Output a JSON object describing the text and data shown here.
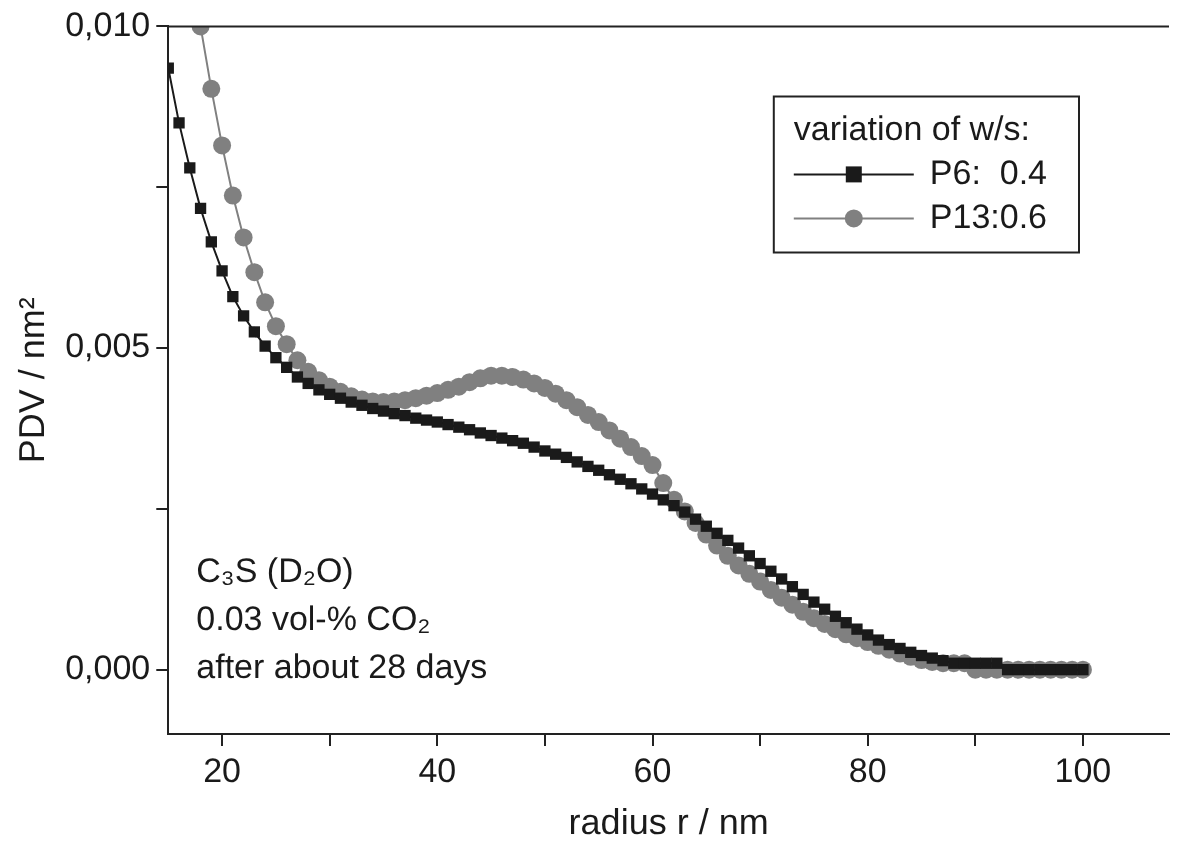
{
  "chart_data": {
    "type": "line",
    "xlabel": "radius r / nm",
    "ylabel": "PDV / nm²",
    "legend_title": "variation of w/s:",
    "legend": "top right",
    "grid": false,
    "line_style": "solid",
    "xlim": [
      15,
      108
    ],
    "xticks": [
      20,
      {
        "value": 30,
        "label": null
      },
      40,
      {
        "value": 50,
        "label": null
      },
      60,
      {
        "value": 70,
        "label": null
      },
      80,
      {
        "value": 90,
        "label": null
      },
      100
    ],
    "ylim": [
      -0.001,
      0.01
    ],
    "yticks": [
      {
        "value": 0,
        "label": "0,000"
      },
      {
        "value": 0.0025,
        "label": null
      },
      {
        "value": 0.005,
        "label": "0,005"
      },
      {
        "value": 0.0075,
        "label": null
      },
      {
        "value": 0.01,
        "label": "0,010"
      }
    ],
    "annotations": [
      "C₃S (D₂O)",
      "0.03 vol-% CO₂",
      "after about 28 days"
    ],
    "series": [
      {
        "name": "P6:  0.4",
        "color": "#1a1a1a",
        "marker": "square",
        "x": [
          15,
          16,
          17,
          18,
          19,
          20,
          21,
          22,
          23,
          24,
          25,
          26,
          27,
          28,
          29,
          30,
          31,
          32,
          33,
          34,
          35,
          36,
          37,
          38,
          39,
          40,
          41,
          42,
          43,
          44,
          45,
          46,
          47,
          48,
          49,
          50,
          51,
          52,
          53,
          54,
          55,
          56,
          57,
          58,
          59,
          60,
          61,
          62,
          63,
          64,
          65,
          66,
          67,
          68,
          69,
          70,
          71,
          72,
          73,
          74,
          75,
          76,
          77,
          78,
          79,
          80,
          81,
          82,
          83,
          84,
          85,
          86,
          87,
          88,
          89,
          90,
          91,
          92,
          93,
          94,
          95,
          96,
          97,
          98,
          99,
          100
        ],
        "values": [
          0.00935,
          0.0085,
          0.0078,
          0.00717,
          0.00665,
          0.0062,
          0.0058,
          0.0055,
          0.00525,
          0.00503,
          0.00485,
          0.0047,
          0.00455,
          0.00445,
          0.00435,
          0.00428,
          0.00422,
          0.00416,
          0.00411,
          0.00406,
          0.00402,
          0.00398,
          0.00395,
          0.00391,
          0.00388,
          0.00385,
          0.00381,
          0.00377,
          0.00373,
          0.00368,
          0.00364,
          0.0036,
          0.00356,
          0.00352,
          0.00346,
          0.0034,
          0.00335,
          0.0033,
          0.00323,
          0.00316,
          0.0031,
          0.00303,
          0.00296,
          0.00289,
          0.00281,
          0.00273,
          0.00264,
          0.00255,
          0.00245,
          0.00234,
          0.00223,
          0.00212,
          0.00201,
          0.00189,
          0.00177,
          0.00165,
          0.00153,
          0.00141,
          0.00129,
          0.00117,
          0.00105,
          0.00094,
          0.00083,
          0.00073,
          0.00063,
          0.00054,
          0.00046,
          0.00039,
          0.00033,
          0.00027,
          0.00022,
          0.00018,
          0.00014,
          0.0001,
          0.0001,
          0.0001,
          0.0001,
          0.0001,
          0,
          0,
          0,
          0,
          0,
          0,
          0,
          0
        ]
      },
      {
        "name": "P13:0.6",
        "color": "#808080",
        "marker": "circle",
        "x": [
          18,
          19,
          20,
          21,
          22,
          23,
          24,
          25,
          26,
          27,
          28,
          29,
          30,
          31,
          32,
          33,
          34,
          35,
          36,
          37,
          38,
          39,
          40,
          41,
          42,
          43,
          44,
          45,
          46,
          47,
          48,
          49,
          50,
          51,
          52,
          53,
          54,
          55,
          56,
          57,
          58,
          59,
          60,
          61,
          62,
          63,
          64,
          65,
          66,
          67,
          68,
          69,
          70,
          71,
          72,
          73,
          74,
          75,
          76,
          77,
          78,
          79,
          80,
          81,
          82,
          83,
          84,
          85,
          86,
          87,
          88,
          89,
          90,
          91,
          92,
          93,
          94,
          95,
          96,
          97,
          98,
          99,
          100
        ],
        "values": [
          0.01,
          0.00903,
          0.00815,
          0.00737,
          0.00672,
          0.00618,
          0.00571,
          0.00534,
          0.00506,
          0.00481,
          0.00463,
          0.0045,
          0.0044,
          0.00432,
          0.00425,
          0.0042,
          0.00417,
          0.00416,
          0.00417,
          0.00419,
          0.00422,
          0.00426,
          0.0043,
          0.00435,
          0.0044,
          0.00447,
          0.00453,
          0.00457,
          0.00457,
          0.00455,
          0.00451,
          0.00445,
          0.00438,
          0.00429,
          0.00419,
          0.00408,
          0.00396,
          0.00385,
          0.00372,
          0.00359,
          0.00346,
          0.00332,
          0.00318,
          0.0029,
          0.00264,
          0.00246,
          0.00228,
          0.0021,
          0.00193,
          0.00177,
          0.00162,
          0.00149,
          0.00137,
          0.00124,
          0.00112,
          0.00101,
          0.0009,
          0.0008,
          0.00071,
          0.00063,
          0.00055,
          0.00049,
          0.00043,
          0.00037,
          0.00031,
          0.00025,
          0.0002,
          0.00015,
          0.00012,
          0.0001,
          0.0001,
          0.0001,
          0,
          0,
          0,
          0,
          0,
          0,
          0,
          0,
          0,
          0,
          0
        ]
      }
    ]
  }
}
